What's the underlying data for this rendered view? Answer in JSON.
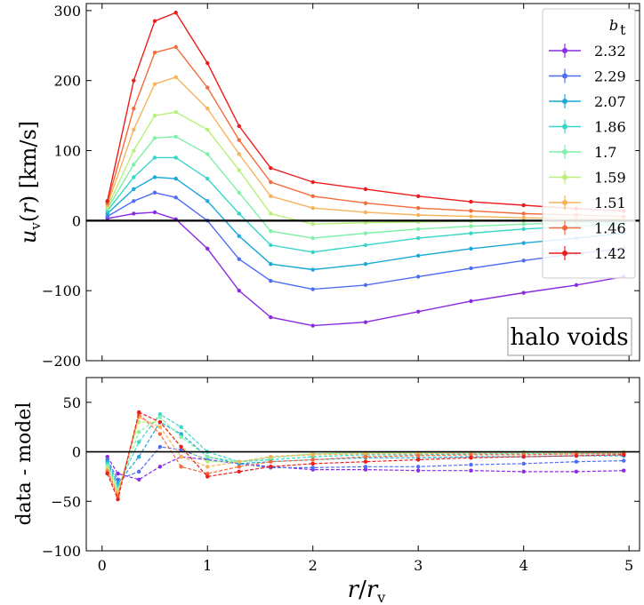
{
  "chart_data": [
    {
      "type": "line",
      "panel": "top",
      "ylabel": "u_v(r) [km/s]",
      "ylim": [
        -200,
        310
      ],
      "yticks": [
        -200,
        -100,
        0,
        100,
        200,
        300
      ],
      "xlim": [
        -0.15,
        5.1
      ],
      "xticks": [
        0,
        1,
        2,
        3,
        4,
        5
      ],
      "x_tick_labels_shown": false,
      "zero_line": true,
      "annotation": "halo voids",
      "legend": {
        "title": "b_t",
        "placement": "upper-right",
        "entries": [
          "2.32",
          "2.29",
          "2.07",
          "1.86",
          "1.7",
          "1.59",
          "1.51",
          "1.46",
          "1.42"
        ]
      },
      "x": [
        0.05,
        0.3,
        0.5,
        0.7,
        1.0,
        1.3,
        1.6,
        2.0,
        2.5,
        3.0,
        3.5,
        4.0,
        4.5,
        4.95
      ],
      "series": [
        {
          "name": "2.32",
          "color": "#8a2be2",
          "values": [
            3,
            10,
            12,
            2,
            -40,
            -100,
            -138,
            -150,
            -145,
            -130,
            -115,
            -103,
            -92,
            -80
          ]
        },
        {
          "name": "2.29",
          "color": "#4f6df5",
          "values": [
            6,
            28,
            40,
            33,
            0,
            -55,
            -86,
            -98,
            -92,
            -80,
            -68,
            -57,
            -47,
            -40
          ]
        },
        {
          "name": "2.07",
          "color": "#1ca8d8",
          "values": [
            10,
            45,
            62,
            60,
            28,
            -22,
            -62,
            -70,
            -62,
            -50,
            -40,
            -32,
            -25,
            -18
          ]
        },
        {
          "name": "1.86",
          "color": "#38d6c8",
          "values": [
            14,
            62,
            90,
            90,
            60,
            10,
            -35,
            -45,
            -35,
            -25,
            -18,
            -12,
            -8,
            -5
          ]
        },
        {
          "name": "1.7",
          "color": "#7ef0a8",
          "values": [
            17,
            80,
            118,
            120,
            95,
            40,
            -15,
            -25,
            -18,
            -12,
            -8,
            -5,
            -3,
            -2
          ]
        },
        {
          "name": "1.59",
          "color": "#b8f07a",
          "values": [
            19,
            100,
            150,
            155,
            130,
            72,
            10,
            -5,
            -3,
            -2,
            -1,
            0,
            0,
            0
          ]
        },
        {
          "name": "1.51",
          "color": "#f7b35a",
          "values": [
            22,
            130,
            195,
            205,
            160,
            95,
            35,
            18,
            12,
            8,
            6,
            4,
            3,
            2
          ]
        },
        {
          "name": "1.46",
          "color": "#f46b3c",
          "values": [
            25,
            160,
            240,
            248,
            190,
            115,
            55,
            35,
            25,
            18,
            14,
            10,
            8,
            6
          ]
        },
        {
          "name": "1.42",
          "color": "#ee1c1c",
          "values": [
            28,
            200,
            285,
            297,
            225,
            135,
            75,
            55,
            45,
            35,
            27,
            22,
            17,
            14
          ]
        }
      ]
    },
    {
      "type": "line",
      "panel": "bottom",
      "xlabel": "r/r_v",
      "ylabel": "data - model",
      "ylim": [
        -100,
        75
      ],
      "yticks": [
        -100,
        -50,
        0,
        50
      ],
      "xlim": [
        -0.15,
        5.1
      ],
      "xticks": [
        0,
        1,
        2,
        3,
        4,
        5
      ],
      "zero_line": true,
      "x": [
        0.05,
        0.15,
        0.35,
        0.55,
        0.75,
        1.0,
        1.3,
        1.6,
        2.0,
        2.5,
        3.0,
        3.5,
        4.0,
        4.5,
        4.95
      ],
      "series": [
        {
          "name": "2.32",
          "color": "#8a2be2",
          "values": [
            -5,
            -22,
            -28,
            -15,
            -5,
            -8,
            -12,
            -15,
            -18,
            -18,
            -19,
            -19,
            -20,
            -20,
            -19
          ]
        },
        {
          "name": "2.29",
          "color": "#4f6df5",
          "values": [
            -8,
            -28,
            -20,
            5,
            2,
            -8,
            -12,
            -16,
            -16,
            -15,
            -15,
            -13,
            -12,
            -10,
            -9
          ]
        },
        {
          "name": "2.07",
          "color": "#1ca8d8",
          "values": [
            -10,
            -32,
            -5,
            30,
            18,
            -5,
            -12,
            -10,
            -8,
            -6,
            -6,
            -5,
            -5,
            -4,
            -4
          ]
        },
        {
          "name": "1.86",
          "color": "#38d6c8",
          "values": [
            -12,
            -35,
            10,
            38,
            25,
            0,
            -10,
            -8,
            -5,
            -3,
            -3,
            -2,
            -2,
            -2,
            -2
          ]
        },
        {
          "name": "1.7",
          "color": "#7ef0a8",
          "values": [
            -14,
            -38,
            20,
            35,
            15,
            -5,
            -10,
            -6,
            -2,
            -1,
            -1,
            -1,
            -1,
            -1,
            -1
          ]
        },
        {
          "name": "1.59",
          "color": "#b8f07a",
          "values": [
            -16,
            -40,
            30,
            30,
            5,
            -10,
            -10,
            -5,
            -2,
            -1,
            -1,
            -1,
            0,
            0,
            0
          ]
        },
        {
          "name": "1.51",
          "color": "#f7b35a",
          "values": [
            -18,
            -42,
            35,
            25,
            -5,
            -15,
            -10,
            -5,
            -3,
            -2,
            -2,
            -1,
            -1,
            -1,
            -1
          ]
        },
        {
          "name": "1.46",
          "color": "#f46b3c",
          "values": [
            -20,
            -45,
            38,
            18,
            -15,
            -22,
            -15,
            -10,
            -8,
            -5,
            -4,
            -3,
            -3,
            -2,
            -2
          ]
        },
        {
          "name": "1.42",
          "color": "#ee1c1c",
          "values": [
            -22,
            -48,
            40,
            30,
            5,
            -25,
            -20,
            -15,
            -12,
            -10,
            -8,
            -6,
            -5,
            -4,
            -3
          ]
        }
      ]
    }
  ]
}
